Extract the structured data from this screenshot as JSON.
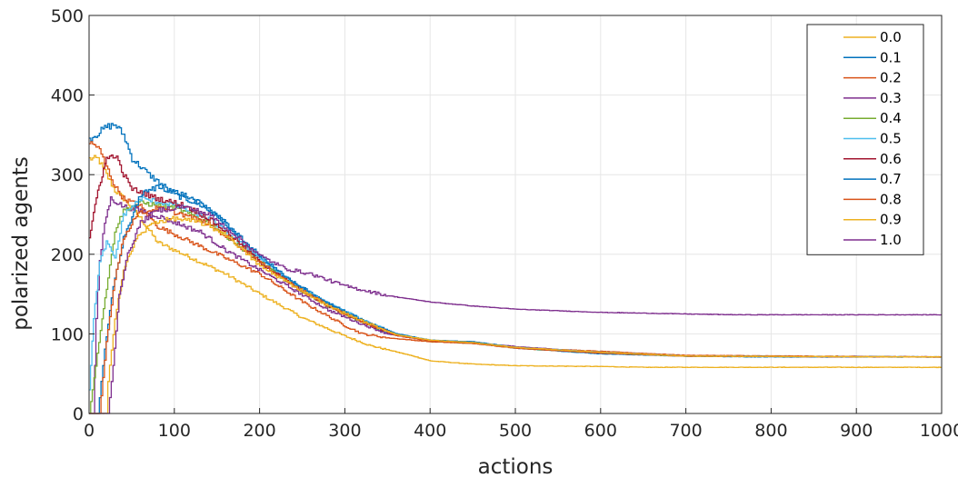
{
  "chart_data": {
    "type": "line",
    "title": "",
    "xlabel": "actions",
    "ylabel": "polarized agents",
    "xlim": [
      0,
      1000
    ],
    "ylim": [
      0,
      500
    ],
    "xticks": [
      0,
      100,
      200,
      300,
      400,
      500,
      600,
      700,
      800,
      900,
      1000
    ],
    "yticks": [
      0,
      100,
      200,
      300,
      400,
      500
    ],
    "grid": true,
    "legend_position": "top-right",
    "series": [
      {
        "name": "0.0",
        "color": "#EDB120",
        "points": [
          [
            0,
            320
          ],
          [
            10,
            320
          ],
          [
            20,
            300
          ],
          [
            30,
            280
          ],
          [
            40,
            270
          ],
          [
            60,
            245
          ],
          [
            80,
            215
          ],
          [
            100,
            205
          ],
          [
            130,
            190
          ],
          [
            160,
            175
          ],
          [
            200,
            150
          ],
          [
            250,
            120
          ],
          [
            300,
            97
          ],
          [
            330,
            85
          ],
          [
            350,
            80
          ],
          [
            380,
            72
          ],
          [
            400,
            66
          ],
          [
            450,
            62
          ],
          [
            500,
            60
          ],
          [
            600,
            59
          ],
          [
            650,
            58
          ],
          [
            700,
            58
          ],
          [
            1000,
            58
          ]
        ]
      },
      {
        "name": "0.1",
        "color": "#0072BD",
        "points": [
          [
            0,
            345
          ],
          [
            10,
            352
          ],
          [
            20,
            360
          ],
          [
            30,
            363
          ],
          [
            40,
            350
          ],
          [
            50,
            320
          ],
          [
            70,
            300
          ],
          [
            100,
            275
          ],
          [
            130,
            262
          ],
          [
            160,
            240
          ],
          [
            180,
            212
          ],
          [
            200,
            195
          ],
          [
            230,
            170
          ],
          [
            270,
            145
          ],
          [
            310,
            120
          ],
          [
            350,
            100
          ],
          [
            400,
            92
          ],
          [
            450,
            90
          ],
          [
            500,
            82
          ],
          [
            600,
            75
          ],
          [
            700,
            72
          ],
          [
            800,
            71
          ],
          [
            1000,
            71
          ]
        ]
      },
      {
        "name": "0.2",
        "color": "#D95319",
        "points": [
          [
            0,
            340
          ],
          [
            10,
            335
          ],
          [
            20,
            310
          ],
          [
            30,
            285
          ],
          [
            40,
            270
          ],
          [
            60,
            260
          ],
          [
            80,
            235
          ],
          [
            100,
            225
          ],
          [
            130,
            210
          ],
          [
            170,
            190
          ],
          [
            200,
            175
          ],
          [
            250,
            140
          ],
          [
            300,
            110
          ],
          [
            320,
            100
          ],
          [
            350,
            95
          ],
          [
            400,
            90
          ],
          [
            450,
            88
          ],
          [
            500,
            83
          ],
          [
            600,
            78
          ],
          [
            700,
            73
          ],
          [
            1000,
            71
          ]
        ]
      },
      {
        "name": "0.3",
        "color": "#7E2F8E",
        "points": [
          [
            5,
            0
          ],
          [
            8,
            120
          ],
          [
            12,
            190
          ],
          [
            18,
            240
          ],
          [
            25,
            270
          ],
          [
            40,
            260
          ],
          [
            70,
            252
          ],
          [
            100,
            240
          ],
          [
            130,
            228
          ],
          [
            160,
            205
          ],
          [
            200,
            180
          ],
          [
            240,
            155
          ],
          [
            280,
            130
          ],
          [
            320,
            112
          ],
          [
            350,
            100
          ],
          [
            400,
            92
          ],
          [
            450,
            89
          ],
          [
            500,
            84
          ],
          [
            600,
            77
          ],
          [
            700,
            72
          ],
          [
            1000,
            71
          ]
        ]
      },
      {
        "name": "0.4",
        "color": "#77AC30",
        "points": [
          [
            0,
            0
          ],
          [
            15,
            120
          ],
          [
            22,
            170
          ],
          [
            30,
            230
          ],
          [
            40,
            255
          ],
          [
            60,
            265
          ],
          [
            100,
            258
          ],
          [
            140,
            240
          ],
          [
            170,
            215
          ],
          [
            200,
            190
          ],
          [
            240,
            160
          ],
          [
            280,
            135
          ],
          [
            320,
            115
          ],
          [
            360,
            98
          ],
          [
            400,
            91
          ],
          [
            450,
            88
          ],
          [
            500,
            82
          ],
          [
            600,
            76
          ],
          [
            700,
            72
          ],
          [
            1000,
            71
          ]
        ]
      },
      {
        "name": "0.5",
        "color": "#4DBEEE",
        "points": [
          [
            0,
            30
          ],
          [
            5,
            120
          ],
          [
            12,
            190
          ],
          [
            20,
            215
          ],
          [
            30,
            195
          ],
          [
            40,
            250
          ],
          [
            60,
            270
          ],
          [
            100,
            262
          ],
          [
            140,
            245
          ],
          [
            170,
            220
          ],
          [
            200,
            195
          ],
          [
            240,
            162
          ],
          [
            280,
            138
          ],
          [
            320,
            118
          ],
          [
            360,
            100
          ],
          [
            400,
            92
          ],
          [
            450,
            89
          ],
          [
            500,
            83
          ],
          [
            600,
            77
          ],
          [
            700,
            72
          ],
          [
            1000,
            71
          ]
        ]
      },
      {
        "name": "0.6",
        "color": "#A2142F",
        "points": [
          [
            0,
            222
          ],
          [
            5,
            250
          ],
          [
            10,
            280
          ],
          [
            15,
            300
          ],
          [
            20,
            320
          ],
          [
            30,
            325
          ],
          [
            40,
            300
          ],
          [
            50,
            282
          ],
          [
            80,
            270
          ],
          [
            110,
            262
          ],
          [
            140,
            245
          ],
          [
            170,
            220
          ],
          [
            200,
            190
          ],
          [
            240,
            160
          ],
          [
            280,
            135
          ],
          [
            320,
            115
          ],
          [
            360,
            98
          ],
          [
            400,
            91
          ],
          [
            450,
            89
          ],
          [
            500,
            83
          ],
          [
            600,
            76
          ],
          [
            700,
            72
          ],
          [
            1000,
            71
          ]
        ]
      },
      {
        "name": "0.7",
        "color": "#0072BD",
        "points": [
          [
            0,
            0
          ],
          [
            10,
            0
          ],
          [
            18,
            80
          ],
          [
            28,
            160
          ],
          [
            40,
            220
          ],
          [
            60,
            275
          ],
          [
            80,
            285
          ],
          [
            110,
            275
          ],
          [
            140,
            258
          ],
          [
            170,
            228
          ],
          [
            200,
            198
          ],
          [
            240,
            163
          ],
          [
            280,
            138
          ],
          [
            320,
            117
          ],
          [
            360,
            100
          ],
          [
            400,
            92
          ],
          [
            450,
            90
          ],
          [
            500,
            83
          ],
          [
            600,
            76
          ],
          [
            700,
            72
          ],
          [
            1000,
            71
          ]
        ]
      },
      {
        "name": "0.8",
        "color": "#D95319",
        "points": [
          [
            0,
            0
          ],
          [
            12,
            0
          ],
          [
            20,
            90
          ],
          [
            30,
            170
          ],
          [
            40,
            220
          ],
          [
            55,
            250
          ],
          [
            80,
            258
          ],
          [
            110,
            250
          ],
          [
            140,
            238
          ],
          [
            170,
            215
          ],
          [
            200,
            190
          ],
          [
            240,
            160
          ],
          [
            280,
            135
          ],
          [
            320,
            115
          ],
          [
            360,
            98
          ],
          [
            400,
            91
          ],
          [
            450,
            88
          ],
          [
            500,
            82
          ],
          [
            600,
            76
          ],
          [
            700,
            72
          ],
          [
            1000,
            71
          ]
        ]
      },
      {
        "name": "0.9",
        "color": "#EDB120",
        "points": [
          [
            0,
            0
          ],
          [
            10,
            0
          ],
          [
            20,
            0
          ],
          [
            22,
            40
          ],
          [
            30,
            120
          ],
          [
            40,
            180
          ],
          [
            55,
            220
          ],
          [
            75,
            240
          ],
          [
            100,
            245
          ],
          [
            130,
            240
          ],
          [
            160,
            225
          ],
          [
            200,
            185
          ],
          [
            240,
            160
          ],
          [
            280,
            135
          ],
          [
            320,
            116
          ],
          [
            360,
            99
          ],
          [
            400,
            92
          ],
          [
            450,
            89
          ],
          [
            500,
            83
          ],
          [
            600,
            77
          ],
          [
            700,
            72
          ],
          [
            1000,
            71
          ]
        ]
      },
      {
        "name": "1.0",
        "color": "#7E2F8E",
        "points": [
          [
            0,
            0
          ],
          [
            22,
            0
          ],
          [
            28,
            60
          ],
          [
            35,
            150
          ],
          [
            45,
            200
          ],
          [
            60,
            240
          ],
          [
            80,
            255
          ],
          [
            110,
            260
          ],
          [
            140,
            250
          ],
          [
            170,
            225
          ],
          [
            200,
            198
          ],
          [
            230,
            182
          ],
          [
            260,
            175
          ],
          [
            300,
            160
          ],
          [
            350,
            148
          ],
          [
            400,
            140
          ],
          [
            450,
            135
          ],
          [
            500,
            131
          ],
          [
            600,
            127
          ],
          [
            700,
            125
          ],
          [
            760,
            124
          ],
          [
            1000,
            124
          ]
        ]
      }
    ]
  }
}
